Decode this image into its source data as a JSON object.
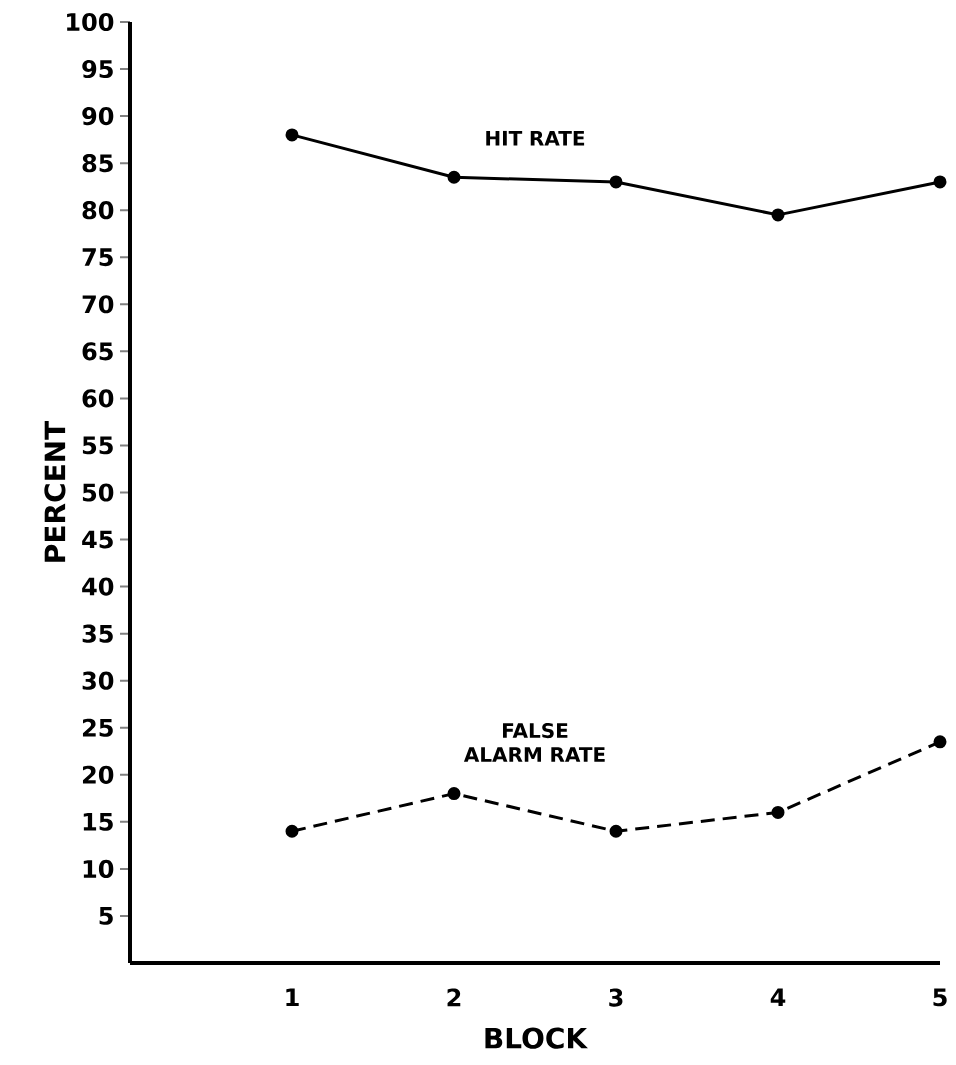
{
  "chart_data": {
    "type": "line",
    "xlabel": "BLOCK",
    "ylabel": "PERCENT",
    "x": [
      1,
      2,
      3,
      4,
      5
    ],
    "xlim": [
      0,
      5
    ],
    "xticks": [
      1,
      2,
      3,
      4,
      5
    ],
    "ylim": [
      0,
      100
    ],
    "yticks": [
      5,
      10,
      15,
      20,
      25,
      30,
      35,
      40,
      45,
      50,
      55,
      60,
      65,
      70,
      75,
      80,
      85,
      90,
      95,
      100
    ],
    "marker": "circle",
    "grid": false,
    "legend": false,
    "series": [
      {
        "name": "HIT RATE",
        "color": "#000000",
        "line_style": "solid",
        "values": [
          88,
          83.5,
          83,
          79.5,
          83
        ]
      },
      {
        "name": "FALSE ALARM RATE",
        "color": "#000000",
        "line_style": "dashed",
        "values": [
          14,
          18,
          14,
          16,
          23.5
        ]
      }
    ]
  }
}
